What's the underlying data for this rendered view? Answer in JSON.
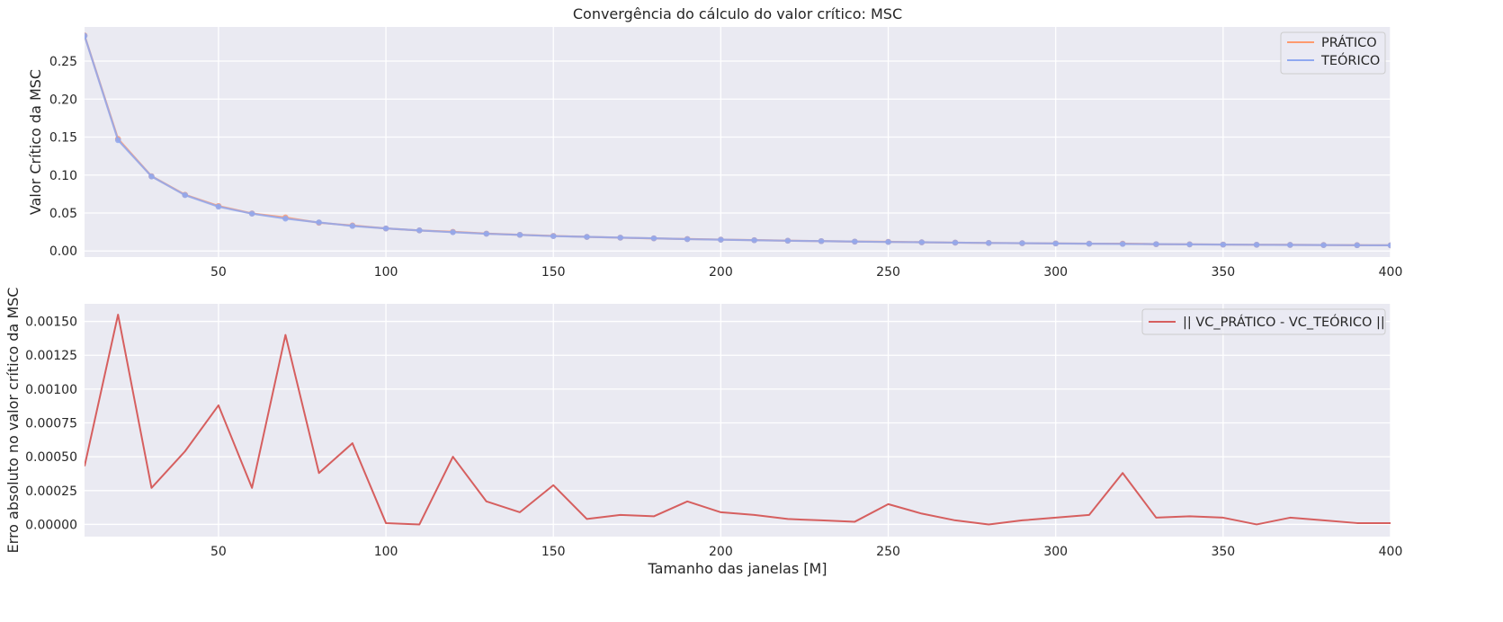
{
  "colors": {
    "axes_bg": "#EAEAF2",
    "grid": "#FFFFFF",
    "pratico": "#FF9A6E",
    "teorico": "#8FA8F0",
    "overlap": "#A98BAC",
    "error": "#D65F5F",
    "legend_bg": "#EAEAF2",
    "legend_border": "#CCCCCC"
  },
  "chart_data": [
    {
      "type": "line",
      "title": "Convergência do cálculo do valor crítico: MSC",
      "xlabel": "",
      "ylabel": "Valor Crítico da MSC",
      "xlim": [
        10,
        400
      ],
      "ylim": [
        -0.008,
        0.295
      ],
      "xticks": [
        50,
        100,
        150,
        200,
        250,
        300,
        350,
        400
      ],
      "xtick_labels": [
        "50",
        "100",
        "150",
        "200",
        "250",
        "300",
        "350",
        "400"
      ],
      "yticks": [
        0.0,
        0.05,
        0.1,
        0.15,
        0.2,
        0.25
      ],
      "ytick_labels": [
        "0.00",
        "0.05",
        "0.10",
        "0.15",
        "0.20",
        "0.25"
      ],
      "grid": true,
      "markers": true,
      "legend": "top-right",
      "x": [
        10,
        20,
        30,
        40,
        50,
        60,
        70,
        80,
        90,
        100,
        110,
        120,
        130,
        140,
        150,
        160,
        170,
        180,
        190,
        200,
        210,
        220,
        230,
        240,
        250,
        260,
        270,
        280,
        290,
        300,
        310,
        320,
        330,
        340,
        350,
        360,
        370,
        380,
        390,
        400
      ],
      "series": [
        {
          "name": "PRÁTICO",
          "values": [
            0.2838,
            0.1476,
            0.0985,
            0.0741,
            0.0593,
            0.0495,
            0.0441,
            0.0372,
            0.0336,
            0.0297,
            0.0271,
            0.0253,
            0.0229,
            0.0213,
            0.0199,
            0.0186,
            0.0175,
            0.0166,
            0.0158,
            0.015,
            0.0143,
            0.0136,
            0.013,
            0.0124,
            0.0121,
            0.0115,
            0.011,
            0.0106,
            0.0103,
            0.01,
            0.0097,
            0.0097,
            0.009,
            0.0088,
            0.0085,
            0.0082,
            0.0081,
            0.0079,
            0.0077,
            0.0075
          ]
        },
        {
          "name": "TEÓRICO",
          "values": [
            0.2834,
            0.146,
            0.0982,
            0.0736,
            0.0584,
            0.0492,
            0.0427,
            0.0376,
            0.033,
            0.0297,
            0.0271,
            0.0248,
            0.0227,
            0.0212,
            0.0196,
            0.0186,
            0.0176,
            0.0167,
            0.0156,
            0.0149,
            0.0142,
            0.0135,
            0.013,
            0.0124,
            0.0119,
            0.0115,
            0.011,
            0.0106,
            0.0103,
            0.0099,
            0.0096,
            0.0093,
            0.009,
            0.0087,
            0.0084,
            0.0082,
            0.008,
            0.0078,
            0.0076,
            0.0075
          ]
        }
      ]
    },
    {
      "type": "line",
      "title": "",
      "xlabel": "Tamanho das janelas [M]",
      "ylabel": "Erro absoluto no valor crítico da MSC",
      "xlim": [
        10,
        400
      ],
      "ylim": [
        -9e-05,
        0.00163
      ],
      "xticks": [
        50,
        100,
        150,
        200,
        250,
        300,
        350,
        400
      ],
      "xtick_labels": [
        "50",
        "100",
        "150",
        "200",
        "250",
        "300",
        "350",
        "400"
      ],
      "yticks": [
        0.0,
        0.00025,
        0.0005,
        0.00075,
        0.001,
        0.00125,
        0.0015
      ],
      "ytick_labels": [
        "0.00000",
        "0.00025",
        "0.00050",
        "0.00075",
        "0.00100",
        "0.00125",
        "0.00150"
      ],
      "grid": true,
      "markers": false,
      "legend": "top-right",
      "x": [
        10,
        20,
        30,
        40,
        50,
        60,
        70,
        80,
        90,
        100,
        110,
        120,
        130,
        140,
        150,
        160,
        170,
        180,
        190,
        200,
        210,
        220,
        230,
        240,
        250,
        260,
        270,
        280,
        290,
        300,
        310,
        320,
        330,
        340,
        350,
        360,
        370,
        380,
        390,
        400
      ],
      "series": [
        {
          "name": "|| VC_PRÁTICO - VC_TEÓRICO ||",
          "values": [
            0.00043,
            0.00155,
            0.00027,
            0.00054,
            0.00088,
            0.00027,
            0.0014,
            0.00038,
            0.0006,
            1e-05,
            0.0,
            0.0005,
            0.00017,
            9e-05,
            0.00029,
            4e-05,
            7e-05,
            6e-05,
            0.00017,
            9e-05,
            7e-05,
            4e-05,
            3e-05,
            2e-05,
            0.00015,
            8e-05,
            3e-05,
            0.0,
            3e-05,
            5e-05,
            7e-05,
            0.00038,
            5e-05,
            6e-05,
            5e-05,
            0.0,
            5e-05,
            3e-05,
            1e-05,
            1e-05
          ]
        }
      ]
    }
  ]
}
